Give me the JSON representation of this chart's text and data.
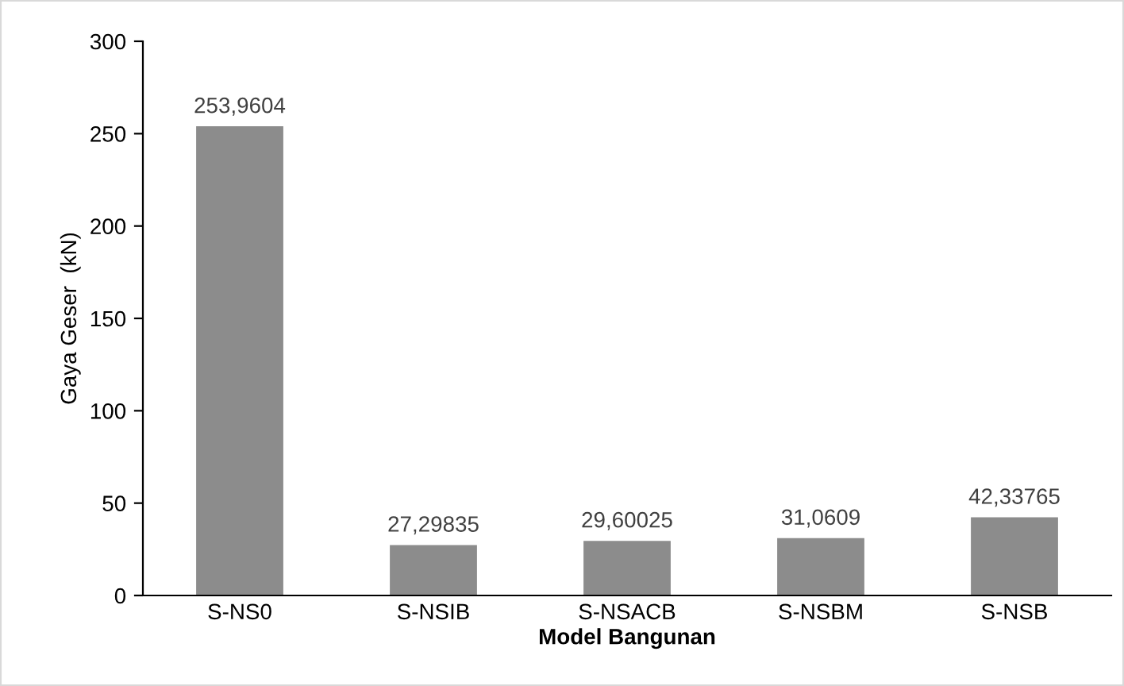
{
  "chart_data": {
    "type": "bar",
    "xlabel": "Model Bangunan",
    "ylabel": "Gaya Geser  (kN)",
    "categories": [
      "S-NS0",
      "S-NSIB",
      "S-NSACB",
      "S-NSBM",
      "S-NSB"
    ],
    "values": [
      253.9604,
      27.29835,
      29.60025,
      31.0609,
      42.33765
    ],
    "value_labels": [
      "253,9604",
      "27,29835",
      "29,60025",
      "31,0609",
      "42,33765"
    ],
    "color": "#8c8c8c",
    "ylim": [
      0,
      300
    ],
    "yticks": [
      0,
      50,
      100,
      150,
      200,
      250,
      300
    ],
    "grid": false,
    "legend": false
  }
}
